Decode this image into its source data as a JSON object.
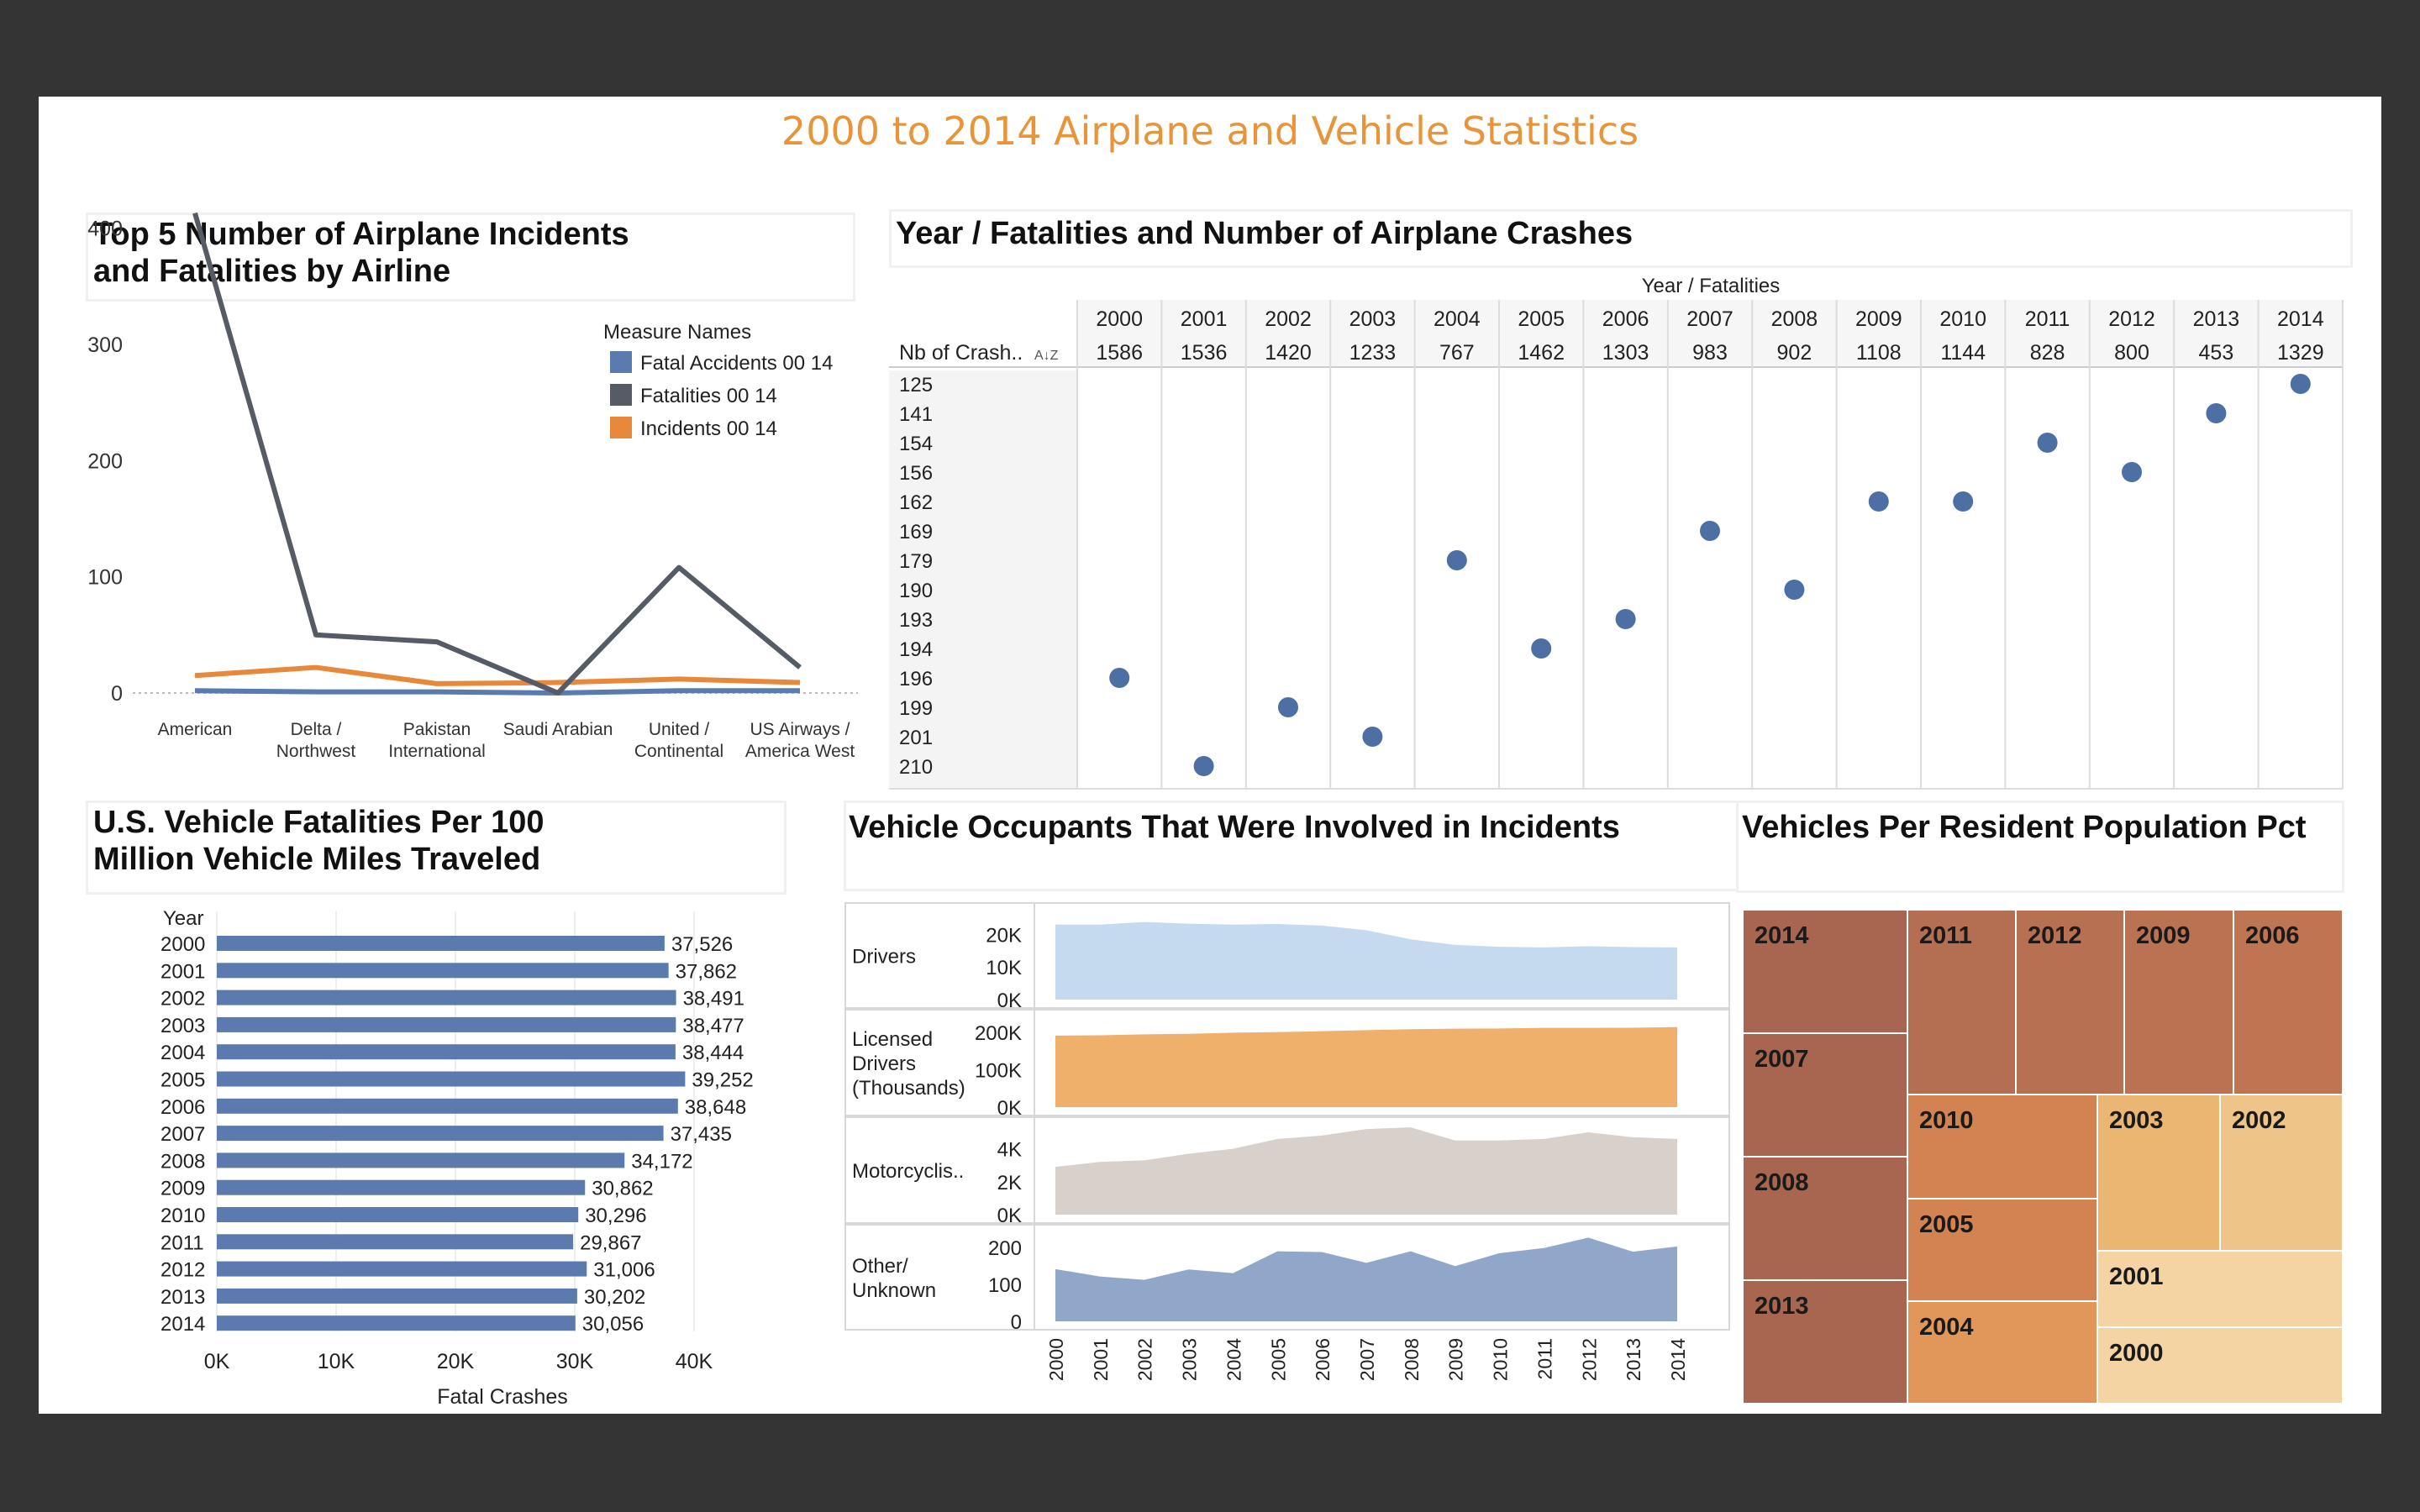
{
  "dashboard": {
    "title": "2000 to 2014 Airplane and Vehicle Statistics"
  },
  "airline_panel": {
    "title_line1": "Top 5 Number of Airplane Incidents",
    "title_line2": "and Fatalities by Airline"
  },
  "crash_panel": {
    "title": "Year / Fatalities and Number of Airplane Crashes",
    "header": "Year  /  Fatalities",
    "row_label": "Nb of Crash..",
    "sort_icon": "sort-az-icon"
  },
  "vmt_panel": {
    "title_line1": "U.S. Vehicle Fatalities Per 100",
    "title_line2": "Million Vehicle Miles Traveled"
  },
  "occupant_panel": {
    "title": "Vehicle Occupants That Were Involved in Incidents"
  },
  "treemap_panel": {
    "title": "Vehicles Per Resident Population Pct"
  },
  "chart_data": [
    {
      "id": "airline",
      "type": "line",
      "categories": [
        "American",
        "Delta / Northwest",
        "Pakistan International",
        "Saudi Arabian",
        "United / Continental",
        "US Airways / America West"
      ],
      "category_lines": [
        [
          "American"
        ],
        [
          "Delta /",
          "Northwest"
        ],
        [
          "Pakistan",
          "International"
        ],
        [
          "Saudi Arabian"
        ],
        [
          "United /",
          "Continental"
        ],
        [
          "US Airways /",
          "America West"
        ]
      ],
      "legend_title": "Measure Names",
      "legend_position": "top-right",
      "series": [
        {
          "name": "Fatal Accidents 00 14",
          "color": "#5B7BAF",
          "values": [
            2,
            1,
            1,
            0,
            2,
            2
          ]
        },
        {
          "name": "Fatalities 00 14",
          "color": "#555C66",
          "values": [
            413,
            50,
            44,
            0,
            108,
            22
          ]
        },
        {
          "name": "Incidents 00 14",
          "color": "#E8883A",
          "values": [
            15,
            22,
            8,
            9,
            12,
            9
          ]
        }
      ],
      "ylim": [
        0,
        420
      ],
      "yticks": [
        0,
        100,
        200,
        300,
        400
      ]
    },
    {
      "id": "crashes",
      "type": "scatter",
      "years": [
        "2000",
        "2001",
        "2002",
        "2003",
        "2004",
        "2005",
        "2006",
        "2007",
        "2008",
        "2009",
        "2010",
        "2011",
        "2012",
        "2013",
        "2014"
      ],
      "fatalities": [
        "1586",
        "1536",
        "1420",
        "1233",
        "767",
        "1462",
        "1303",
        "983",
        "902",
        "1108",
        "1144",
        "828",
        "800",
        "453",
        "1329"
      ],
      "crash_levels": [
        "125",
        "141",
        "154",
        "156",
        "162",
        "169",
        "179",
        "190",
        "193",
        "194",
        "196",
        "199",
        "201",
        "210"
      ],
      "crashes": [
        "196",
        "210",
        "199",
        "201",
        "179",
        "194",
        "193",
        "169",
        "190",
        "162",
        "162",
        "154",
        "156",
        "141",
        "125"
      ],
      "color": "#4E6FA3"
    },
    {
      "id": "vmt",
      "type": "bar",
      "orientation": "horizontal",
      "year_header": "Year",
      "categories": [
        "2000",
        "2001",
        "2002",
        "2003",
        "2004",
        "2005",
        "2006",
        "2007",
        "2008",
        "2009",
        "2010",
        "2011",
        "2012",
        "2013",
        "2014"
      ],
      "values": [
        37526,
        37862,
        38491,
        38477,
        38444,
        39252,
        38648,
        37435,
        34172,
        30862,
        30296,
        29867,
        31006,
        30202,
        30056
      ],
      "labels": [
        "37,526",
        "37,862",
        "38,491",
        "38,477",
        "38,444",
        "39,252",
        "38,648",
        "37,435",
        "34,172",
        "30,862",
        "30,296",
        "29,867",
        "31,006",
        "30,202",
        "30,056"
      ],
      "xlabel": "Fatal Crashes",
      "xticks": [
        0,
        10000,
        20000,
        30000,
        40000
      ],
      "xtick_labels": [
        "0K",
        "10K",
        "20K",
        "30K",
        "40K"
      ],
      "xlim": [
        0,
        45000
      ],
      "color": "#5B7BAF"
    },
    {
      "id": "occupants",
      "type": "area",
      "x": [
        "2000",
        "2001",
        "2002",
        "2003",
        "2004",
        "2005",
        "2006",
        "2007",
        "2008",
        "2009",
        "2010",
        "2011",
        "2012",
        "2013",
        "2014"
      ],
      "series": [
        {
          "name": "Drivers",
          "name_lines": [
            "Drivers"
          ],
          "color": "#C5DAEF",
          "ymax": 25000,
          "ticks": [
            0,
            10000,
            20000
          ],
          "tick_labels": [
            "0K",
            "10K",
            "20K"
          ],
          "values": [
            23000,
            23000,
            23800,
            23300,
            23000,
            23200,
            22700,
            21300,
            18500,
            16800,
            16200,
            16000,
            16400,
            16100,
            16000
          ]
        },
        {
          "name": "Licensed Drivers (Thousands)",
          "name_lines": [
            "Licensed",
            "Drivers",
            "(Thousands)"
          ],
          "color": "#EFB06C",
          "ymax": 220000,
          "ticks": [
            0,
            100000,
            200000
          ],
          "tick_labels": [
            "0K",
            "100K",
            "200K"
          ],
          "values": [
            191000,
            192000,
            194500,
            196000,
            199000,
            200500,
            202800,
            205700,
            208300,
            209600,
            210100,
            211900,
            211800,
            212200,
            214100
          ]
        },
        {
          "name": "Motorcyclis..",
          "name_lines": [
            "Motorcyclis.."
          ],
          "color": "#D8D0CA",
          "ymax": 5000,
          "ticks": [
            0,
            2000,
            4000
          ],
          "tick_labels": [
            "0K",
            "2K",
            "4K"
          ],
          "values": [
            2900,
            3200,
            3300,
            3700,
            4000,
            4600,
            4800,
            5200,
            5300,
            4500,
            4500,
            4600,
            5000,
            4700,
            4600
          ]
        },
        {
          "name": "Other/ Unknown",
          "name_lines": [
            "Other/",
            "Unknown"
          ],
          "color": "#91A7CA",
          "ymax": 220,
          "ticks": [
            0,
            100,
            200
          ],
          "tick_labels": [
            "0",
            "100",
            "200"
          ],
          "values": [
            141,
            121,
            112,
            140,
            130,
            189,
            187,
            158,
            189,
            149,
            184,
            198,
            226,
            188,
            202
          ]
        }
      ]
    },
    {
      "id": "treemap",
      "type": "treemap",
      "items": [
        {
          "label": "2014",
          "color": "#A86650"
        },
        {
          "label": "2007",
          "color": "#A86650"
        },
        {
          "label": "2008",
          "color": "#A86650"
        },
        {
          "label": "2013",
          "color": "#A86650"
        },
        {
          "label": "2011",
          "color": "#B46E52"
        },
        {
          "label": "2012",
          "color": "#B87052"
        },
        {
          "label": "2009",
          "color": "#BB7252"
        },
        {
          "label": "2006",
          "color": "#BF7452"
        },
        {
          "label": "2010",
          "color": "#D38252"
        },
        {
          "label": "2005",
          "color": "#D38252"
        },
        {
          "label": "2004",
          "color": "#E2975A"
        },
        {
          "label": "2003",
          "color": "#EBB672"
        },
        {
          "label": "2002",
          "color": "#EFC488"
        },
        {
          "label": "2001",
          "color": "#F5D4A4"
        },
        {
          "label": "2000",
          "color": "#F5D4A4"
        }
      ]
    }
  ]
}
